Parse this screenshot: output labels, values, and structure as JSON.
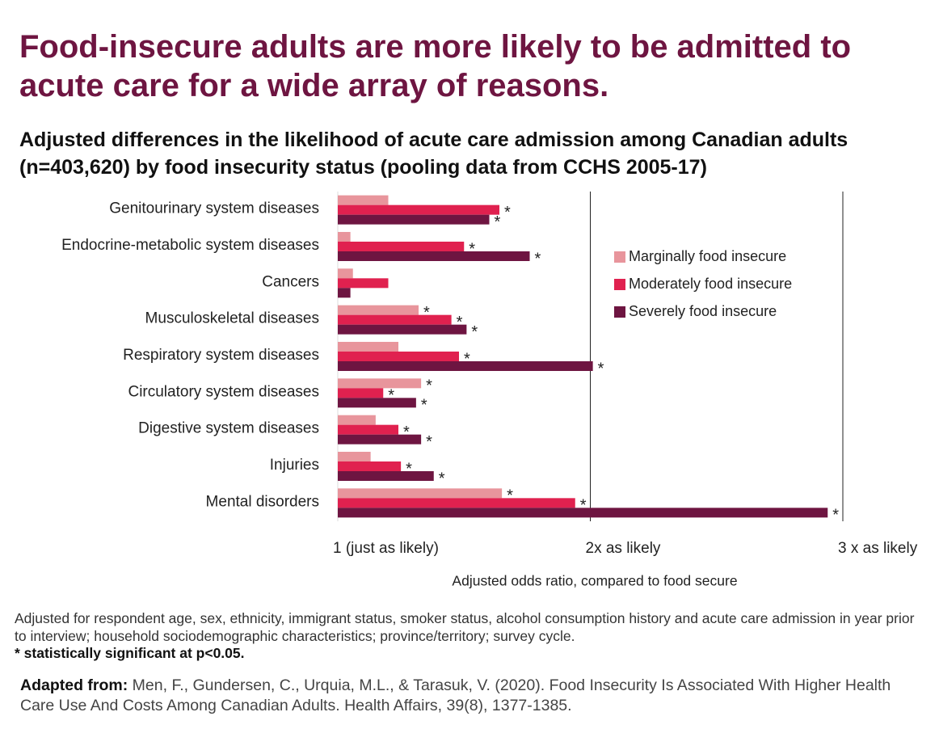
{
  "chart_data": {
    "type": "hbar",
    "title": "Food-insecure adults are more likely to be admitted to acute care for a wide array of reasons.",
    "subtitle": "Adjusted differences in the likelihood of acute care admission among Canadian adults (n=403,620) by food insecurity status (pooling data from CCHS 2005-17)",
    "categories": [
      "Genitourinary system diseases",
      "Endocrine-metabolic system diseases",
      "Cancers",
      "Musculoskeletal diseases",
      "Respiratory system diseases",
      "Circulatory system diseases",
      "Digestive system diseases",
      "Injuries",
      "Mental disorders"
    ],
    "series": [
      {
        "name": "Marginally food insecure",
        "color": "#e8959c",
        "values": [
          1.2,
          1.05,
          1.06,
          1.32,
          1.24,
          1.33,
          1.15,
          1.13,
          1.65
        ],
        "significant": [
          false,
          false,
          false,
          true,
          false,
          true,
          false,
          false,
          true
        ]
      },
      {
        "name": "Moderately food insecure",
        "color": "#e0214f",
        "values": [
          1.64,
          1.5,
          1.2,
          1.45,
          1.48,
          1.18,
          1.24,
          1.25,
          1.94
        ],
        "significant": [
          true,
          true,
          false,
          true,
          true,
          true,
          true,
          true,
          true
        ]
      },
      {
        "name": "Severely food insecure",
        "color": "#6e1541",
        "values": [
          1.6,
          1.76,
          1.05,
          1.51,
          2.01,
          1.31,
          1.33,
          1.38,
          2.94
        ],
        "significant": [
          true,
          true,
          false,
          true,
          true,
          true,
          true,
          true,
          true
        ]
      }
    ],
    "significance_marker": "*",
    "xlim": [
      1,
      3
    ],
    "xticks": [
      {
        "value": 1,
        "label": "1 (just as likely)"
      },
      {
        "value": 2,
        "label": "2x as likely"
      },
      {
        "value": 3,
        "label": "3 x as likely"
      }
    ],
    "x_label": "Adjusted odds ratio, compared to food secure",
    "grid": true,
    "legend_position": "right",
    "footnote": "Adjusted for respondent age, sex, ethnicity, immigrant status, smoker status, alcohol consumption history and acute care admission in year prior to interview; household sociodemographic characteristics; province/territory; survey cycle.",
    "significance_note": "* statistically significant at p<0.05.",
    "source_label": "Adapted from:",
    "source": "Men, F., Gundersen, C., Urquia, M.L., & Tarasuk, V. (2020). Food Insecurity Is Associated With Higher Health Care Use And Costs Among Canadian Adults. Health Affairs, 39(8), 1377-1385."
  }
}
